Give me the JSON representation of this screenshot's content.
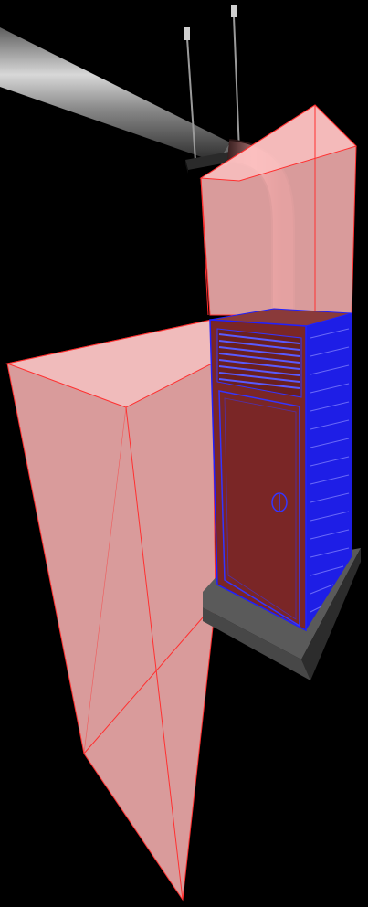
{
  "scene": {
    "background_color": "#000000",
    "objects": [
      {
        "name": "ceiling-pipe",
        "color": "#8c8c8c"
      },
      {
        "name": "hanger-rods",
        "color": "#9a9a9a"
      },
      {
        "name": "pipe-bracket",
        "color": "#2a2a2a"
      },
      {
        "name": "flexible-duct",
        "color": "#7a4a4a"
      },
      {
        "name": "selected-bounding-volumes",
        "fill_color": "#ffb6b6",
        "edge_color": "#ff3030"
      },
      {
        "name": "cabinet-front",
        "color": "#7a2626"
      },
      {
        "name": "cabinet-side-grille",
        "color": "#1e1ee6"
      },
      {
        "name": "cabinet-base-plinth",
        "color": "#5a5a5a"
      }
    ]
  }
}
